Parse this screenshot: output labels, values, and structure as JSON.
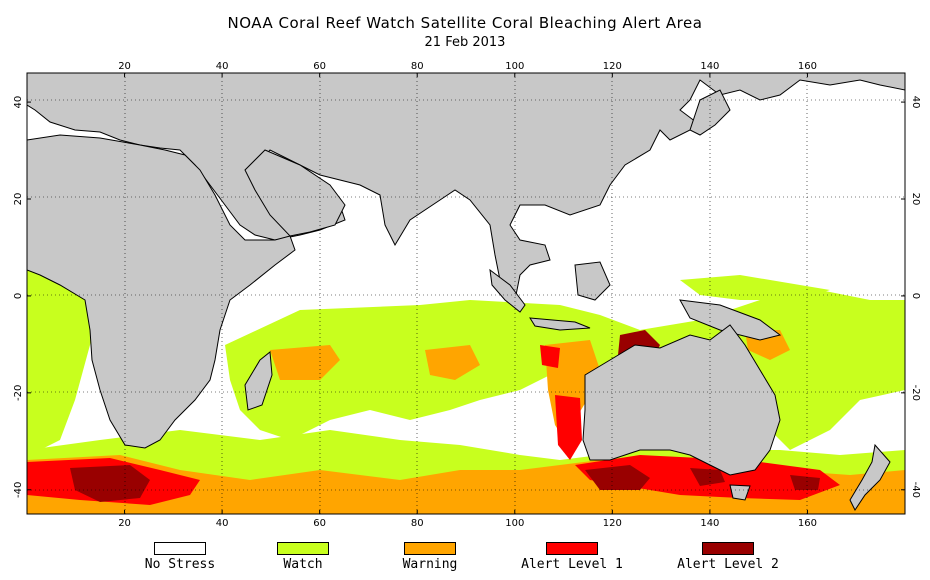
{
  "title": "NOAA Coral Reef Watch Satellite Coral Bleaching Alert Area",
  "subtitle": "21 Feb 2013",
  "map": {
    "lon_range": [
      0,
      180
    ],
    "lat_range": [
      -45,
      46
    ],
    "lon_ticks": [
      20,
      40,
      60,
      80,
      100,
      120,
      140,
      160
    ],
    "lat_ticks": [
      40,
      20,
      0,
      -20,
      -40
    ],
    "gridlines": "dotted",
    "land_color": "#c8c8c8",
    "ocean_color": "#ffffff",
    "coastline_color": "#000000"
  },
  "legend": [
    {
      "label": "No Stress",
      "color": "#ffffff"
    },
    {
      "label": "Watch",
      "color": "#c8ff1e"
    },
    {
      "label": "Warning",
      "color": "#ffa500"
    },
    {
      "label": "Alert Level 1",
      "color": "#ff0000"
    },
    {
      "label": "Alert Level 2",
      "color": "#990000"
    }
  ]
}
